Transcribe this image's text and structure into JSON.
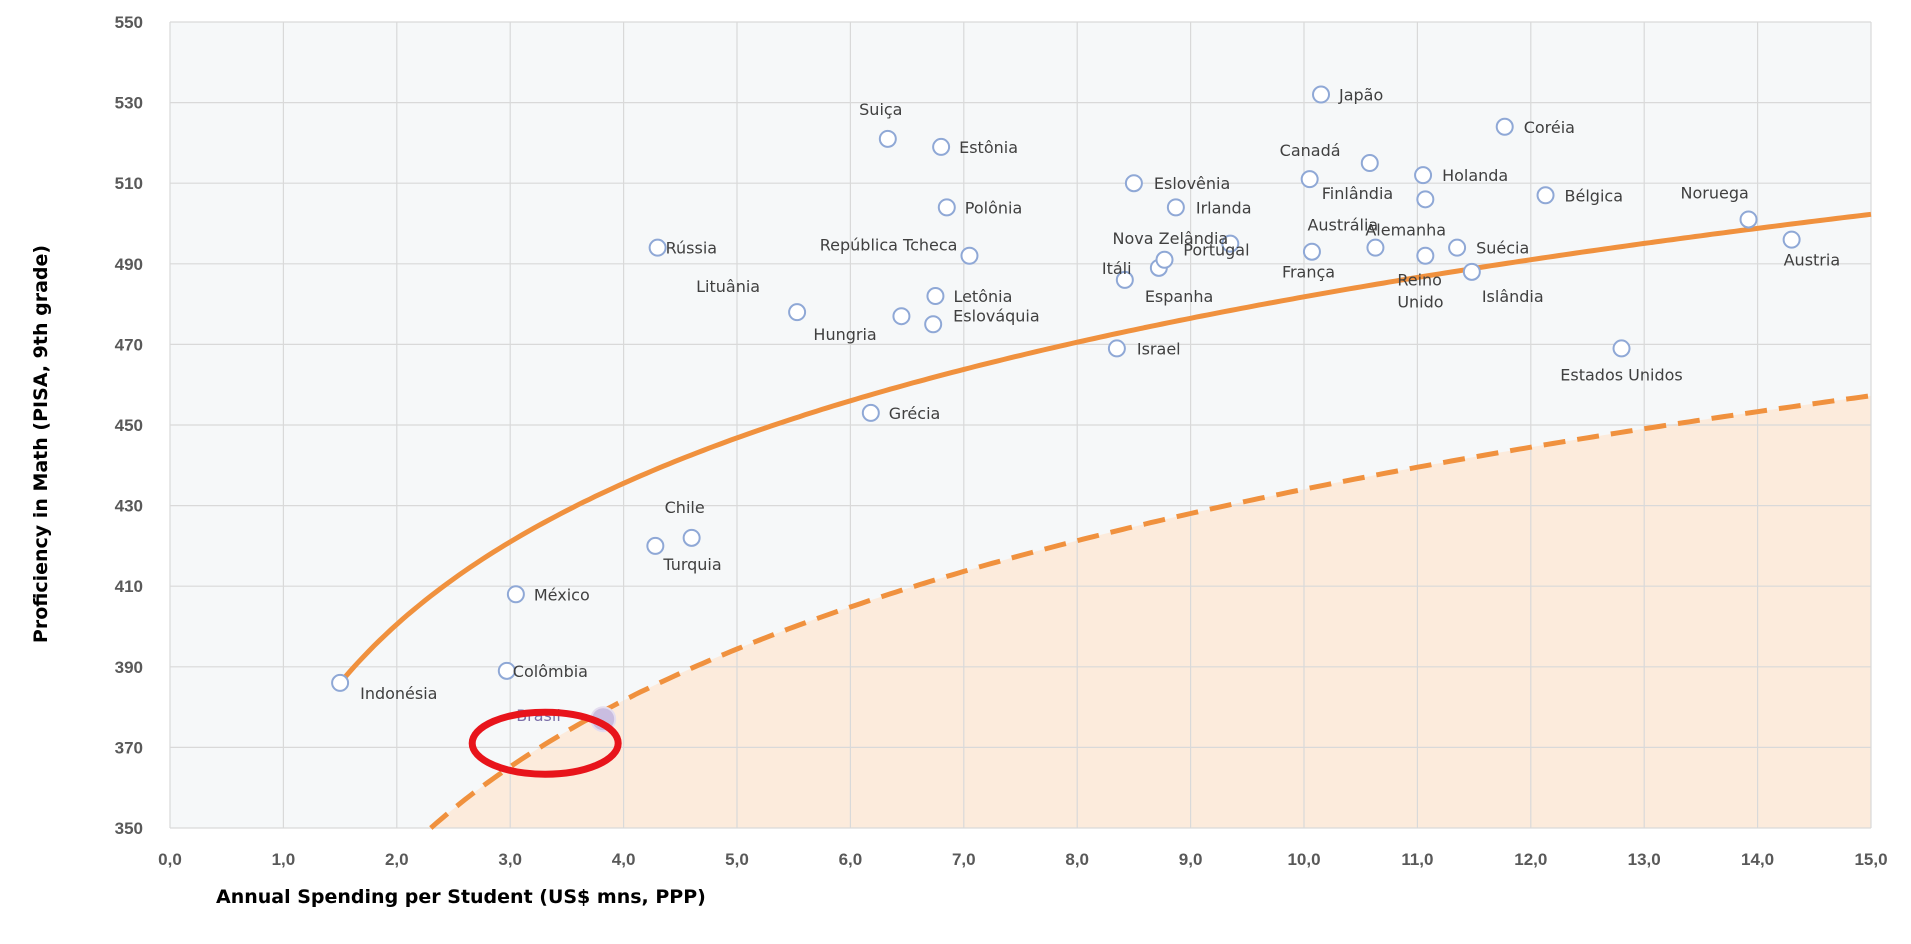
{
  "chart_data": {
    "type": "scatter",
    "xlabel": "Annual Spending per Student (US$ mns, PPP)",
    "ylabel": "Proficiency in Math (PISA, 9th grade)",
    "xlim": [
      0,
      15
    ],
    "ylim": [
      350,
      550
    ],
    "x_ticks": [
      0,
      1,
      2,
      3,
      4,
      5,
      6,
      7,
      8,
      9,
      10,
      11,
      12,
      13,
      14,
      15
    ],
    "x_tick_labels": [
      "0,0",
      "1,0",
      "2,0",
      "3,0",
      "4,0",
      "5,0",
      "6,0",
      "7,0",
      "8,0",
      "9,0",
      "10,0",
      "11,0",
      "12,0",
      "13,0",
      "14,0",
      "15,0"
    ],
    "y_ticks": [
      350,
      370,
      390,
      410,
      430,
      450,
      470,
      490,
      510,
      530,
      550
    ],
    "grid": true,
    "legend": "none",
    "colors": {
      "points": "#8fa8d6",
      "frontier": "#f0913e",
      "shaded_region": "#fcebdc",
      "highlight_circle": "#e8141b",
      "highlight_point": "#c9bde0"
    },
    "points": [
      {
        "label": "Indonésia",
        "x": 1.5,
        "y": 386
      },
      {
        "label": "Colômbia",
        "x": 2.97,
        "y": 389
      },
      {
        "label": "México",
        "x": 3.05,
        "y": 408
      },
      {
        "label": "Rússia",
        "x": 4.3,
        "y": 494
      },
      {
        "label": "Turquia",
        "x": 4.28,
        "y": 420
      },
      {
        "label": "Chile",
        "x": 4.6,
        "y": 422
      },
      {
        "label": "Lituânia",
        "x": 5.53,
        "y": 478
      },
      {
        "label": "Grécia",
        "x": 6.18,
        "y": 453
      },
      {
        "label": "Suiça",
        "x": 6.33,
        "y": 521
      },
      {
        "label": "Hungria",
        "x": 6.45,
        "y": 477
      },
      {
        "label": "Eslováquia",
        "x": 6.73,
        "y": 475
      },
      {
        "label": "Letônia",
        "x": 6.75,
        "y": 482
      },
      {
        "label": "Estônia",
        "x": 6.8,
        "y": 519
      },
      {
        "label": "Polônia",
        "x": 6.85,
        "y": 504
      },
      {
        "label": "República Tcheca",
        "x": 7.05,
        "y": 492
      },
      {
        "label": "Israel",
        "x": 8.35,
        "y": 469
      },
      {
        "label": "Espanha",
        "x": 8.42,
        "y": 486
      },
      {
        "label": "Eslovênia",
        "x": 8.5,
        "y": 510
      },
      {
        "label": "Itáli",
        "x": 8.72,
        "y": 489
      },
      {
        "label": "Nova Zelândia",
        "x": 8.77,
        "y": 491
      },
      {
        "label": "Irlanda",
        "x": 8.87,
        "y": 504
      },
      {
        "label": "Portugal",
        "x": 9.35,
        "y": 495
      },
      {
        "label": "Canadá",
        "x": 10.05,
        "y": 511
      },
      {
        "label": "França",
        "x": 10.07,
        "y": 493
      },
      {
        "label": "Japão",
        "x": 10.15,
        "y": 532
      },
      {
        "label": "Finlândia",
        "x": 10.58,
        "y": 515
      },
      {
        "label": "Austrália",
        "x": 10.63,
        "y": 494
      },
      {
        "label": "Holanda",
        "x": 11.05,
        "y": 512
      },
      {
        "label": "Alemanha",
        "x": 11.07,
        "y": 506
      },
      {
        "label": "Reino Unido",
        "x": 11.07,
        "y": 492
      },
      {
        "label": "Suécia",
        "x": 11.35,
        "y": 494
      },
      {
        "label": "Islândia",
        "x": 11.48,
        "y": 488
      },
      {
        "label": "Coréia",
        "x": 11.77,
        "y": 524
      },
      {
        "label": "Bélgica",
        "x": 12.13,
        "y": 507
      },
      {
        "label": "Estados Unidos",
        "x": 12.8,
        "y": 469
      },
      {
        "label": "Noruega",
        "x": 13.92,
        "y": 501
      },
      {
        "label": "Austria",
        "x": 14.3,
        "y": 496
      },
      {
        "label": "Brasil",
        "x": 3.82,
        "y": 377,
        "highlight": true
      }
    ]
  }
}
